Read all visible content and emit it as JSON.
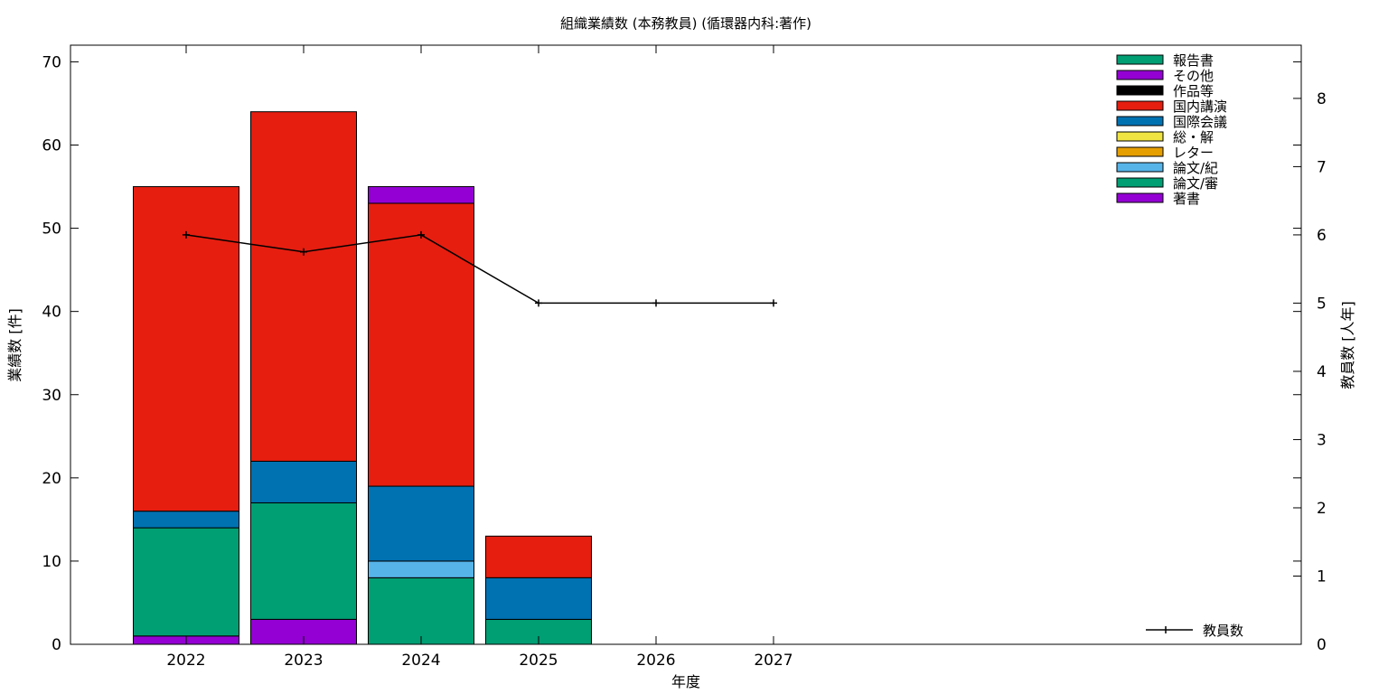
{
  "chart_data": {
    "type": "bar",
    "stacked": true,
    "title": "組織業績数 (本務教員) (循環器内科:著作)",
    "xlabel": "年度",
    "ylabel": "業績数 [件]",
    "y2label": "教員数 [人年]",
    "categories": [
      "2022",
      "2023",
      "2024",
      "2025",
      "2026",
      "2027"
    ],
    "ylim": [
      0,
      72
    ],
    "yticks": [
      0,
      10,
      20,
      30,
      40,
      50,
      60,
      70
    ],
    "y2lim": [
      0,
      8.78
    ],
    "y2ticks": [
      0,
      1,
      2,
      3,
      4,
      5,
      6,
      7,
      8
    ],
    "grid": false,
    "legend_position": "top-right",
    "series": [
      {
        "name": "著書",
        "color": "#9400d3",
        "values": [
          1,
          3,
          0,
          0,
          0,
          0
        ]
      },
      {
        "name": "論文/審",
        "color": "#009e73",
        "values": [
          13,
          14,
          8,
          3,
          0,
          0
        ]
      },
      {
        "name": "論文/紀",
        "color": "#56b4e9",
        "values": [
          0,
          0,
          2,
          0,
          0,
          0
        ]
      },
      {
        "name": "レター",
        "color": "#e69f00",
        "values": [
          0,
          0,
          0,
          0,
          0,
          0
        ]
      },
      {
        "name": "総・解",
        "color": "#f0e442",
        "values": [
          0,
          0,
          0,
          0,
          0,
          0
        ]
      },
      {
        "name": "国際会議",
        "color": "#0072b2",
        "values": [
          2,
          5,
          9,
          5,
          0,
          0
        ]
      },
      {
        "name": "国内講演",
        "color": "#e51e10",
        "values": [
          39,
          42,
          34,
          5,
          0,
          0
        ]
      },
      {
        "name": "作品等",
        "color": "#000000",
        "values": [
          0,
          0,
          0,
          0,
          0,
          0
        ]
      },
      {
        "name": "その他",
        "color": "#9400d3",
        "values": [
          0,
          0,
          2,
          0,
          0,
          0
        ]
      },
      {
        "name": "報告書",
        "color": "#009e73",
        "values": [
          0,
          0,
          0,
          0,
          0,
          0
        ]
      }
    ],
    "line": {
      "name": "教員数",
      "axis": "y2",
      "color": "#000000",
      "values": [
        6,
        5.75,
        6,
        5,
        5,
        5
      ]
    }
  }
}
